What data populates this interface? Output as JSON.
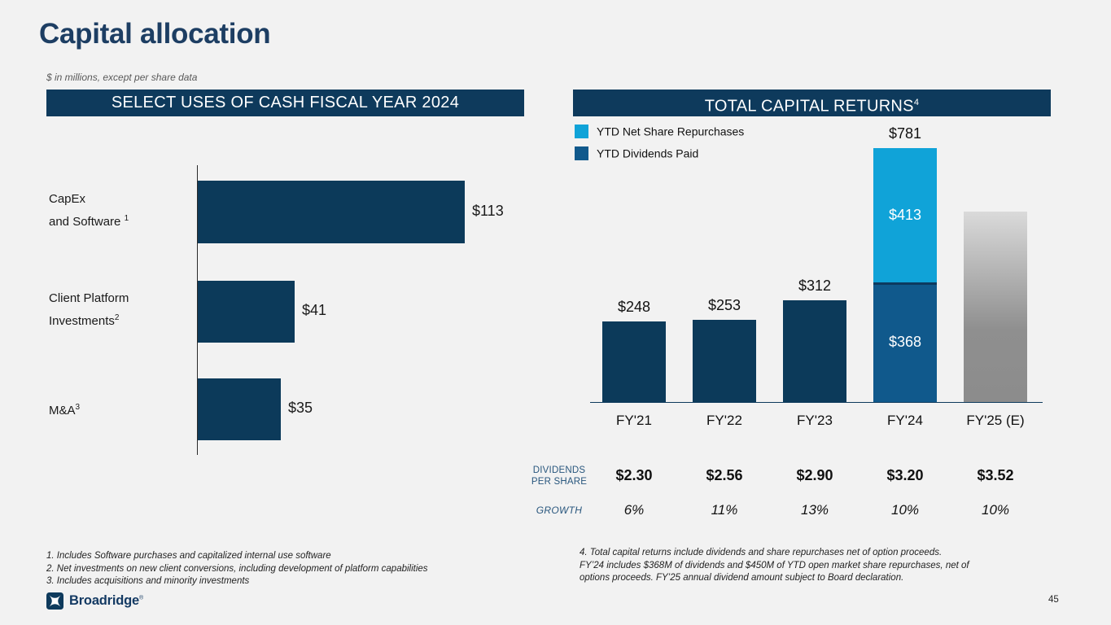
{
  "slide": {
    "title": "Capital allocation",
    "subtitle": "$ in millions, except per share data",
    "page_number": "45",
    "logo_text": "Broadridge",
    "logo_reg_mark": "®"
  },
  "left_panel": {
    "header": "SELECT USES OF CASH FISCAL YEAR 2024"
  },
  "right_panel": {
    "header": "TOTAL CAPITAL RETURNS",
    "header_sup": "4",
    "legend": [
      {
        "label": "YTD Net Share Repurchases",
        "color": "#10a3d8"
      },
      {
        "label": "YTD Dividends Paid",
        "color": "#10598c"
      }
    ],
    "table": {
      "row1_label_line1": "DIVIDENDS",
      "row1_label_line2": "PER SHARE",
      "row2_label": "GROWTH",
      "dps": [
        "$2.30",
        "$2.56",
        "$2.90",
        "$3.20",
        "$3.52"
      ],
      "growth": [
        "6%",
        "11%",
        "13%",
        "10%",
        "10%"
      ]
    }
  },
  "chart_data": [
    {
      "type": "bar",
      "orientation": "horizontal",
      "title": "SELECT USES OF CASH FISCAL YEAR 2024",
      "unit": "$ millions",
      "categories": [
        "CapEx and Software¹",
        "Client Platform Investments²",
        "M&A³"
      ],
      "values": [
        113,
        41,
        35
      ],
      "value_labels": [
        "$113",
        "$41",
        "$35"
      ],
      "xlim": [
        0,
        113
      ],
      "grid": false,
      "cat_lines": [
        [
          {
            "t": "CapEx",
            "s": ""
          },
          {
            "t": "and Software",
            "s": "1"
          }
        ],
        [
          {
            "t": "Client Platform",
            "s": ""
          },
          {
            "t": "Investments",
            "s": "2"
          }
        ],
        [
          {
            "t": "M&A",
            "s": "3"
          }
        ]
      ],
      "bar_color": "#0c3a5a"
    },
    {
      "type": "bar",
      "stacked": true,
      "title": "TOTAL CAPITAL RETURNS⁴",
      "unit": "$ millions",
      "categories": [
        "FY'21",
        "FY'22",
        "FY'23",
        "FY'24",
        "FY'25 (E)"
      ],
      "series": [
        {
          "name": "YTD Dividends Paid",
          "color": "#10598c",
          "values": [
            248,
            253,
            312,
            368,
            null
          ]
        },
        {
          "name": "YTD Net Share Repurchases",
          "color": "#10a3d8",
          "values": [
            null,
            null,
            null,
            413,
            null
          ]
        }
      ],
      "totals": [
        "$248",
        "$253",
        "$312",
        "$781",
        ""
      ],
      "total_values": [
        248,
        253,
        312,
        781,
        null
      ],
      "fy24_segment_labels": {
        "repurchases": "$413",
        "dividends": "$368"
      },
      "fy25_bar": "estimated, gray gradient, no value shown",
      "ylim": [
        0,
        800
      ],
      "grid": false,
      "legend_position": "top-left"
    }
  ],
  "footnotes_left": [
    "1. Includes Software purchases and capitalized internal use software",
    "2. Net investments on new client conversions, including development of platform capabilities",
    "3. Includes acquisitions and minority investments"
  ],
  "footnotes_right": [
    "4. Total capital returns include dividends and share repurchases net of option proceeds.",
    "FY’24 includes $368M of dividends and $450M of YTD open market share repurchases, net of",
    "options proceeds. FY’25 annual dividend amount subject to Board declaration."
  ],
  "colors": {
    "background": "#f2f2f2",
    "navy": "#0e3a5c",
    "bar_navy": "#0c3a5a",
    "light_blue": "#10a3d8",
    "medium_blue": "#10598c",
    "gray_bar_top": "#dadada",
    "gray_bar_bottom": "#8c8c8c",
    "table_label_blue": "#28567d",
    "title_navy": "#1d3e63"
  }
}
